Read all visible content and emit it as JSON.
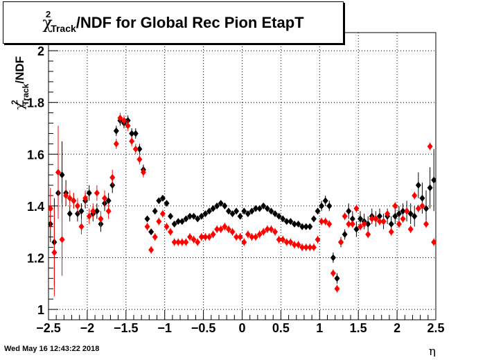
{
  "chart_data": {
    "type": "scatter",
    "title": "/NDF for Global Rec Pion EtapT",
    "title_chi": "χ",
    "title_sub": "Track",
    "title_sup": "2",
    "ylabel": "/NDF",
    "ylabel_chi": "χ",
    "ylabel_sub": "Track",
    "ylabel_sup": "2",
    "xlabel": "η",
    "xlim": [
      -2.5,
      2.5
    ],
    "ylim": [
      0.96,
      2.07
    ],
    "grid": true,
    "x_ticks": [
      "−2.5",
      "−2",
      "−1.5",
      "−1",
      "−0.5",
      "0",
      "0.5",
      "1",
      "1.5",
      "2",
      "2.5"
    ],
    "x_tick_values": [
      -2.5,
      -2,
      -1.5,
      -1,
      -0.5,
      0,
      0.5,
      1,
      1.5,
      2,
      2.5
    ],
    "y_ticks": [
      "1",
      "1.2",
      "1.4",
      "1.6",
      "1.8",
      "2"
    ],
    "y_tick_values": [
      1.0,
      1.2,
      1.4,
      1.6,
      1.8,
      2.0
    ],
    "colors": {
      "black": "#000000",
      "red": "#ff0000"
    },
    "series": [
      {
        "color": "#000000",
        "x": [
          -2.475,
          -2.425,
          -2.375,
          -2.325,
          -2.275,
          -2.225,
          -2.175,
          -2.125,
          -2.075,
          -2.025,
          -1.975,
          -1.925,
          -1.875,
          -1.825,
          -1.775,
          -1.725,
          -1.675,
          -1.625,
          -1.575,
          -1.525,
          -1.475,
          -1.425,
          -1.375,
          -1.325,
          -1.275,
          -1.225,
          -1.175,
          -1.125,
          -1.075,
          -1.025,
          -0.975,
          -0.925,
          -0.875,
          -0.825,
          -0.775,
          -0.725,
          -0.675,
          -0.625,
          -0.575,
          -0.525,
          -0.475,
          -0.425,
          -0.375,
          -0.325,
          -0.275,
          -0.225,
          -0.175,
          -0.125,
          -0.075,
          -0.025,
          0.025,
          0.075,
          0.125,
          0.175,
          0.225,
          0.275,
          0.325,
          0.375,
          0.425,
          0.475,
          0.525,
          0.575,
          0.625,
          0.675,
          0.725,
          0.775,
          0.825,
          0.875,
          0.925,
          0.975,
          1.025,
          1.075,
          1.125,
          1.175,
          1.225,
          1.275,
          1.325,
          1.375,
          1.425,
          1.475,
          1.525,
          1.575,
          1.625,
          1.675,
          1.725,
          1.775,
          1.825,
          1.875,
          1.925,
          1.975,
          2.025,
          2.075,
          2.125,
          2.175,
          2.225,
          2.275,
          2.325,
          2.375,
          2.425,
          2.475
        ],
        "y": [
          1.33,
          1.26,
          1.45,
          1.52,
          1.45,
          1.37,
          1.42,
          1.37,
          1.38,
          1.42,
          1.45,
          1.37,
          1.38,
          1.33,
          1.41,
          1.42,
          1.48,
          1.69,
          1.73,
          1.72,
          1.73,
          1.68,
          1.68,
          1.62,
          1.54,
          1.35,
          1.3,
          1.38,
          1.42,
          1.43,
          1.41,
          1.36,
          1.33,
          1.34,
          1.34,
          1.35,
          1.36,
          1.36,
          1.35,
          1.36,
          1.37,
          1.38,
          1.39,
          1.4,
          1.41,
          1.4,
          1.38,
          1.37,
          1.38,
          1.36,
          1.38,
          1.37,
          1.38,
          1.39,
          1.39,
          1.4,
          1.39,
          1.38,
          1.37,
          1.36,
          1.35,
          1.34,
          1.34,
          1.33,
          1.33,
          1.32,
          1.32,
          1.32,
          1.35,
          1.38,
          1.4,
          1.42,
          1.4,
          1.2,
          1.12,
          1.26,
          1.29,
          1.38,
          1.35,
          1.31,
          1.35,
          1.34,
          1.33,
          1.36,
          1.35,
          1.36,
          1.34,
          1.36,
          1.33,
          1.36,
          1.37,
          1.38,
          1.38,
          1.37,
          1.36,
          1.48,
          1.43,
          1.39,
          1.47,
          1.5
        ],
        "err": [
          0.07,
          0.17,
          0.07,
          0.13,
          0.05,
          0.03,
          0.03,
          0.03,
          0.03,
          0.03,
          0.03,
          0.03,
          0.03,
          0.03,
          0.03,
          0.03,
          0.03,
          0.02,
          0.02,
          0.02,
          0.02,
          0.02,
          0.02,
          0.02,
          0.02,
          0.01,
          0.01,
          0.01,
          0.01,
          0.01,
          0.01,
          0.01,
          0.01,
          0.01,
          0.01,
          0.01,
          0.01,
          0.01,
          0.01,
          0.01,
          0.01,
          0.01,
          0.01,
          0.01,
          0.01,
          0.01,
          0.01,
          0.01,
          0.01,
          0.01,
          0.01,
          0.01,
          0.01,
          0.01,
          0.01,
          0.01,
          0.01,
          0.01,
          0.01,
          0.01,
          0.01,
          0.01,
          0.01,
          0.01,
          0.01,
          0.01,
          0.01,
          0.01,
          0.01,
          0.01,
          0.02,
          0.02,
          0.02,
          0.02,
          0.02,
          0.02,
          0.02,
          0.03,
          0.03,
          0.03,
          0.03,
          0.03,
          0.03,
          0.03,
          0.03,
          0.03,
          0.03,
          0.03,
          0.03,
          0.03,
          0.03,
          0.03,
          0.04,
          0.04,
          0.04,
          0.05,
          0.06,
          0.07,
          0.08,
          0.12
        ]
      },
      {
        "color": "#ff0000",
        "x": [
          -2.475,
          -2.425,
          -2.375,
          -2.325,
          -2.275,
          -2.225,
          -2.175,
          -2.125,
          -2.075,
          -2.025,
          -1.975,
          -1.925,
          -1.875,
          -1.825,
          -1.775,
          -1.725,
          -1.675,
          -1.625,
          -1.575,
          -1.525,
          -1.475,
          -1.425,
          -1.375,
          -1.325,
          -1.275,
          -1.225,
          -1.175,
          -1.125,
          -1.075,
          -1.025,
          -0.975,
          -0.925,
          -0.875,
          -0.825,
          -0.775,
          -0.725,
          -0.675,
          -0.625,
          -0.575,
          -0.525,
          -0.475,
          -0.425,
          -0.375,
          -0.325,
          -0.275,
          -0.225,
          -0.175,
          -0.125,
          -0.075,
          -0.025,
          0.025,
          0.075,
          0.125,
          0.175,
          0.225,
          0.275,
          0.325,
          0.375,
          0.425,
          0.475,
          0.525,
          0.575,
          0.625,
          0.675,
          0.725,
          0.775,
          0.825,
          0.875,
          0.925,
          0.975,
          1.025,
          1.075,
          1.125,
          1.175,
          1.225,
          1.275,
          1.325,
          1.375,
          1.425,
          1.475,
          1.525,
          1.575,
          1.625,
          1.675,
          1.725,
          1.775,
          1.825,
          1.875,
          1.925,
          1.975,
          2.025,
          2.075,
          2.125,
          2.175,
          2.225,
          2.275,
          2.325,
          2.375,
          2.425,
          2.475
        ],
        "y": [
          1.39,
          1.22,
          1.53,
          1.27,
          1.44,
          1.43,
          1.42,
          1.4,
          1.32,
          1.43,
          1.36,
          1.38,
          1.45,
          1.35,
          1.43,
          1.38,
          1.51,
          1.64,
          1.74,
          1.73,
          1.71,
          1.65,
          1.62,
          1.58,
          1.53,
          1.32,
          1.23,
          1.28,
          1.34,
          1.37,
          1.32,
          1.3,
          1.26,
          1.26,
          1.26,
          1.26,
          1.28,
          1.27,
          1.26,
          1.28,
          1.28,
          1.28,
          1.29,
          1.31,
          1.31,
          1.32,
          1.31,
          1.3,
          1.28,
          1.28,
          1.26,
          1.29,
          1.28,
          1.28,
          1.29,
          1.3,
          1.31,
          1.31,
          1.3,
          1.27,
          1.27,
          1.26,
          1.26,
          1.25,
          1.25,
          1.24,
          1.24,
          1.24,
          1.24,
          1.27,
          1.34,
          1.34,
          1.33,
          1.14,
          1.08,
          1.26,
          1.36,
          1.33,
          1.33,
          1.39,
          1.32,
          1.33,
          1.29,
          1.35,
          1.35,
          1.34,
          1.34,
          1.37,
          1.3,
          1.4,
          1.33,
          1.35,
          1.38,
          1.31,
          1.44,
          1.39,
          1.4,
          1.33,
          1.63,
          1.26
        ]
      }
    ]
  },
  "footer": {
    "timestamp": "Wed May 16 12:43:22 2018"
  }
}
